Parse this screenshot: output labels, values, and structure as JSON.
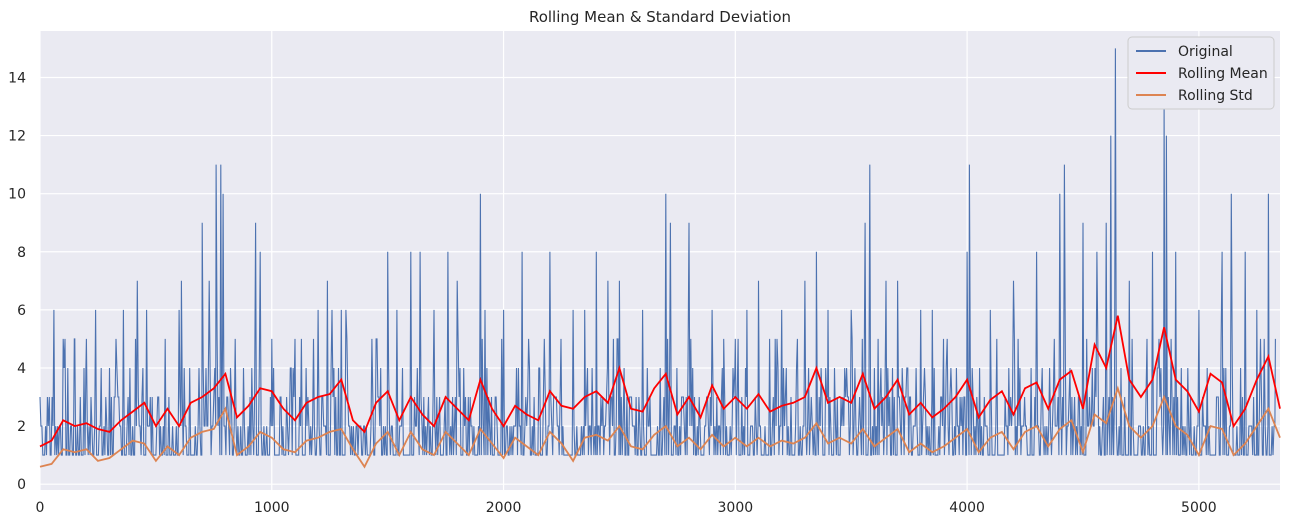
{
  "chart_data": {
    "type": "line",
    "title": "Rolling Mean & Standard Deviation",
    "xlabel": "",
    "ylabel": "",
    "xlim": [
      0,
      5350
    ],
    "ylim": [
      -0.2,
      15.6
    ],
    "x_ticks": [
      0,
      1000,
      2000,
      3000,
      4000,
      5000
    ],
    "y_ticks": [
      0,
      2,
      4,
      6,
      8,
      10,
      12,
      14
    ],
    "grid": true,
    "legend_position": "top-right",
    "series": [
      {
        "name": "Original",
        "color": "#4c72b0",
        "description_values": "integer counts 1–15 sampled every 1 unit; rendered as dense spikes",
        "x_start": 0,
        "x_end": 5350,
        "peaks": [
          [
            0,
            3
          ],
          [
            40,
            3
          ],
          [
            60,
            6
          ],
          [
            100,
            5
          ],
          [
            150,
            5
          ],
          [
            200,
            5
          ],
          [
            240,
            6
          ],
          [
            300,
            4
          ],
          [
            360,
            6
          ],
          [
            420,
            7
          ],
          [
            460,
            6
          ],
          [
            540,
            5
          ],
          [
            600,
            6
          ],
          [
            610,
            7
          ],
          [
            700,
            9
          ],
          [
            730,
            7
          ],
          [
            760,
            11
          ],
          [
            780,
            11
          ],
          [
            790,
            10
          ],
          [
            930,
            9
          ],
          [
            950,
            8
          ],
          [
            1000,
            5
          ],
          [
            1100,
            5
          ],
          [
            1200,
            6
          ],
          [
            1240,
            7
          ],
          [
            1260,
            6
          ],
          [
            1300,
            6
          ],
          [
            1320,
            6
          ],
          [
            1450,
            5
          ],
          [
            1500,
            8
          ],
          [
            1540,
            6
          ],
          [
            1600,
            8
          ],
          [
            1640,
            8
          ],
          [
            1700,
            6
          ],
          [
            1760,
            8
          ],
          [
            1800,
            7
          ],
          [
            1900,
            10
          ],
          [
            1920,
            6
          ],
          [
            2000,
            6
          ],
          [
            2080,
            8
          ],
          [
            2200,
            8
          ],
          [
            2300,
            6
          ],
          [
            2350,
            6
          ],
          [
            2400,
            8
          ],
          [
            2450,
            7
          ],
          [
            2500,
            7
          ],
          [
            2600,
            6
          ],
          [
            2700,
            10
          ],
          [
            2720,
            9
          ],
          [
            2800,
            9
          ],
          [
            2900,
            6
          ],
          [
            2950,
            5
          ],
          [
            3000,
            5
          ],
          [
            3050,
            6
          ],
          [
            3100,
            7
          ],
          [
            3200,
            6
          ],
          [
            3300,
            7
          ],
          [
            3350,
            8
          ],
          [
            3400,
            6
          ],
          [
            3500,
            6
          ],
          [
            3560,
            9
          ],
          [
            3580,
            11
          ],
          [
            3650,
            7
          ],
          [
            3700,
            7
          ],
          [
            3800,
            6
          ],
          [
            3850,
            6
          ],
          [
            4000,
            8
          ],
          [
            4010,
            11
          ],
          [
            4100,
            6
          ],
          [
            4200,
            7
          ],
          [
            4300,
            8
          ],
          [
            4400,
            10
          ],
          [
            4420,
            11
          ],
          [
            4500,
            9
          ],
          [
            4560,
            8
          ],
          [
            4600,
            9
          ],
          [
            4620,
            12
          ],
          [
            4640,
            15
          ],
          [
            4700,
            7
          ],
          [
            4800,
            8
          ],
          [
            4850,
            13
          ],
          [
            4860,
            12
          ],
          [
            4900,
            8
          ],
          [
            5000,
            6
          ],
          [
            5100,
            8
          ],
          [
            5140,
            10
          ],
          [
            5200,
            8
          ],
          [
            5250,
            6
          ],
          [
            5300,
            10
          ],
          [
            5330,
            5
          ]
        ]
      },
      {
        "name": "Rolling Mean",
        "color": "#ff0000",
        "x": [
          0,
          50,
          100,
          150,
          200,
          250,
          300,
          350,
          400,
          450,
          500,
          550,
          600,
          650,
          700,
          750,
          800,
          850,
          900,
          950,
          1000,
          1050,
          1100,
          1150,
          1200,
          1250,
          1300,
          1350,
          1400,
          1450,
          1500,
          1550,
          1600,
          1650,
          1700,
          1750,
          1800,
          1850,
          1900,
          1950,
          2000,
          2050,
          2100,
          2150,
          2200,
          2250,
          2300,
          2350,
          2400,
          2450,
          2500,
          2550,
          2600,
          2650,
          2700,
          2750,
          2800,
          2850,
          2900,
          2950,
          3000,
          3050,
          3100,
          3150,
          3200,
          3250,
          3300,
          3350,
          3400,
          3450,
          3500,
          3550,
          3600,
          3650,
          3700,
          3750,
          3800,
          3850,
          3900,
          3950,
          4000,
          4050,
          4100,
          4150,
          4200,
          4250,
          4300,
          4350,
          4400,
          4450,
          4500,
          4550,
          4600,
          4650,
          4700,
          4750,
          4800,
          4850,
          4900,
          4950,
          5000,
          5050,
          5100,
          5150,
          5200,
          5250,
          5300,
          5350
        ],
        "values": [
          1.3,
          1.5,
          2.2,
          2.0,
          2.1,
          1.9,
          1.8,
          2.2,
          2.5,
          2.8,
          2.0,
          2.6,
          2.0,
          2.8,
          3.0,
          3.3,
          3.8,
          2.3,
          2.7,
          3.3,
          3.2,
          2.6,
          2.2,
          2.8,
          3.0,
          3.1,
          3.6,
          2.2,
          1.8,
          2.8,
          3.2,
          2.2,
          3.0,
          2.4,
          2.0,
          3.0,
          2.6,
          2.2,
          3.6,
          2.6,
          2.0,
          2.7,
          2.4,
          2.2,
          3.2,
          2.7,
          2.6,
          3.0,
          3.2,
          2.8,
          4.0,
          2.6,
          2.5,
          3.3,
          3.8,
          2.4,
          3.0,
          2.3,
          3.4,
          2.6,
          3.0,
          2.6,
          3.1,
          2.5,
          2.7,
          2.8,
          3.0,
          4.0,
          2.8,
          3.0,
          2.8,
          3.8,
          2.6,
          3.0,
          3.6,
          2.4,
          2.8,
          2.3,
          2.6,
          3.0,
          3.6,
          2.3,
          2.9,
          3.2,
          2.4,
          3.3,
          3.5,
          2.6,
          3.6,
          3.9,
          2.6,
          4.8,
          4.0,
          5.8,
          3.6,
          3.0,
          3.6,
          5.4,
          3.6,
          3.2,
          2.5,
          3.8,
          3.5,
          2.0,
          2.6,
          3.6,
          4.4,
          2.6
        ]
      },
      {
        "name": "Rolling Std",
        "color": "#dd8452",
        "x": [
          0,
          50,
          100,
          150,
          200,
          250,
          300,
          350,
          400,
          450,
          500,
          550,
          600,
          650,
          700,
          750,
          800,
          850,
          900,
          950,
          1000,
          1050,
          1100,
          1150,
          1200,
          1250,
          1300,
          1350,
          1400,
          1450,
          1500,
          1550,
          1600,
          1650,
          1700,
          1750,
          1800,
          1850,
          1900,
          1950,
          2000,
          2050,
          2100,
          2150,
          2200,
          2250,
          2300,
          2350,
          2400,
          2450,
          2500,
          2550,
          2600,
          2650,
          2700,
          2750,
          2800,
          2850,
          2900,
          2950,
          3000,
          3050,
          3100,
          3150,
          3200,
          3250,
          3300,
          3350,
          3400,
          3450,
          3500,
          3550,
          3600,
          3650,
          3700,
          3750,
          3800,
          3850,
          3900,
          3950,
          4000,
          4050,
          4100,
          4150,
          4200,
          4250,
          4300,
          4350,
          4400,
          4450,
          4500,
          4550,
          4600,
          4650,
          4700,
          4750,
          4800,
          4850,
          4900,
          4950,
          5000,
          5050,
          5100,
          5150,
          5200,
          5250,
          5300,
          5350
        ],
        "values": [
          0.6,
          0.7,
          1.2,
          1.1,
          1.2,
          0.8,
          0.9,
          1.2,
          1.5,
          1.4,
          0.8,
          1.3,
          1.0,
          1.6,
          1.8,
          1.9,
          2.6,
          1.0,
          1.3,
          1.8,
          1.6,
          1.2,
          1.1,
          1.5,
          1.6,
          1.8,
          1.9,
          1.2,
          0.6,
          1.4,
          1.8,
          1.0,
          1.8,
          1.2,
          1.0,
          1.8,
          1.4,
          1.0,
          1.9,
          1.4,
          0.9,
          1.6,
          1.3,
          1.0,
          1.8,
          1.4,
          0.8,
          1.6,
          1.7,
          1.5,
          2.0,
          1.3,
          1.2,
          1.7,
          2.0,
          1.3,
          1.6,
          1.2,
          1.7,
          1.3,
          1.6,
          1.3,
          1.6,
          1.3,
          1.5,
          1.4,
          1.6,
          2.1,
          1.4,
          1.6,
          1.4,
          1.9,
          1.3,
          1.6,
          1.9,
          1.1,
          1.4,
          1.1,
          1.3,
          1.6,
          1.9,
          1.1,
          1.6,
          1.8,
          1.2,
          1.8,
          2.0,
          1.3,
          1.9,
          2.2,
          1.1,
          2.4,
          2.1,
          3.3,
          2.0,
          1.6,
          2.0,
          3.0,
          2.0,
          1.7,
          1.0,
          2.0,
          1.9,
          1.0,
          1.4,
          2.0,
          2.6,
          1.6
        ]
      }
    ]
  }
}
